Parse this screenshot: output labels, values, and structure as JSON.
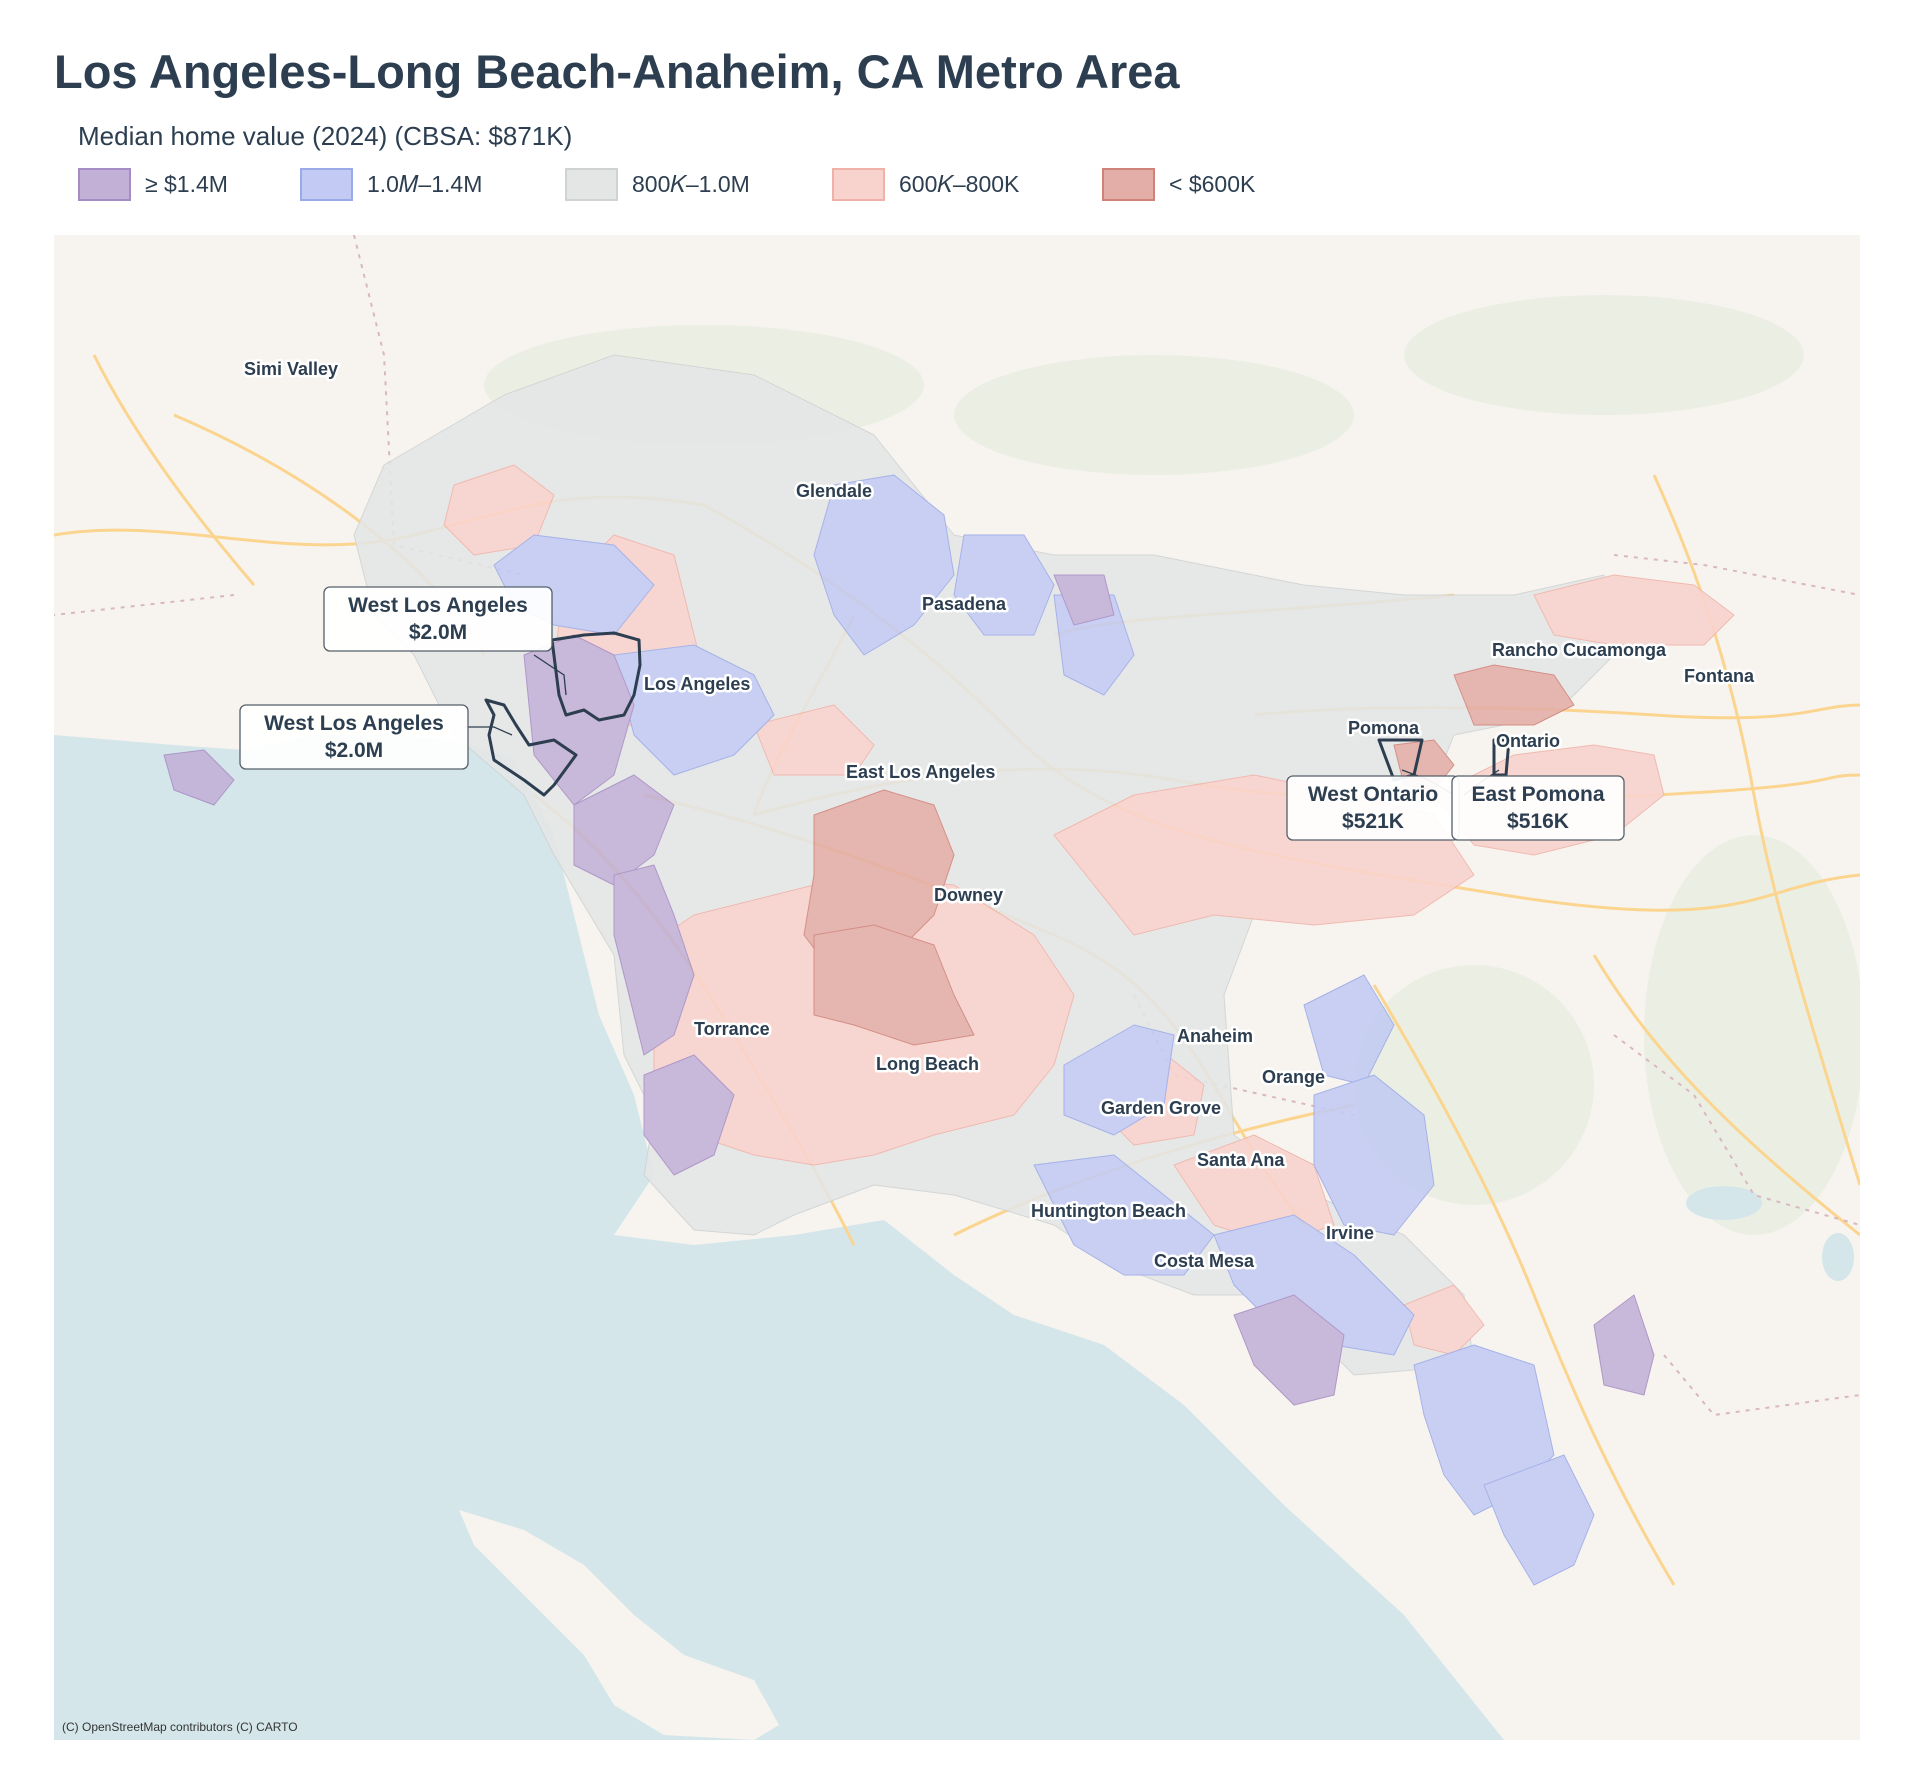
{
  "title": "Los Angeles-Long Beach-Anaheim, CA Metro Area",
  "subtitle": "Median home value (2024)  (CBSA: $871K)",
  "legend": [
    {
      "label": "≥ $1.4M",
      "fill": "#c2b0d6",
      "border": "#a68cc4"
    },
    {
      "label": "1.0𝑀–1.4M",
      "fill": "#c3cbf4",
      "border": "#9aaae8"
    },
    {
      "label": "800𝐾–1.0M",
      "fill": "#e4e6e6",
      "border": "#cfd3d3"
    },
    {
      "label": "600𝐾–800K",
      "fill": "#f8d3ce",
      "border": "#f0b2a8"
    },
    {
      "label": "< $600K",
      "fill": "#e3aea7",
      "border": "#cf8278"
    }
  ],
  "map": {
    "cities": [
      {
        "name": "Simi Valley"
      },
      {
        "name": "Glendale"
      },
      {
        "name": "Pasadena"
      },
      {
        "name": "Los Angeles"
      },
      {
        "name": "East Los Angeles"
      },
      {
        "name": "Downey"
      },
      {
        "name": "Torrance"
      },
      {
        "name": "Long Beach"
      },
      {
        "name": "Anaheim"
      },
      {
        "name": "Orange"
      },
      {
        "name": "Garden Grove"
      },
      {
        "name": "Santa Ana"
      },
      {
        "name": "Huntington Beach"
      },
      {
        "name": "Irvine"
      },
      {
        "name": "Costa Mesa"
      },
      {
        "name": "Rancho Cucamonga"
      },
      {
        "name": "Fontana"
      },
      {
        "name": "Pomona"
      },
      {
        "name": "Ontario"
      }
    ],
    "callouts": [
      {
        "name": "West Los Angeles",
        "value": "$2.0M"
      },
      {
        "name": "West Los Angeles",
        "value": "$2.0M"
      },
      {
        "name": "West Ontario",
        "value": "$521K"
      },
      {
        "name": "East Pomona",
        "value": "$516K"
      }
    ],
    "colors": {
      "water": "#d4e6ea",
      "land": "#f7f4ef",
      "highway": "#fbd58f",
      "outline": "#2c3e50"
    }
  },
  "attribution": "(C) OpenStreetMap contributors (C) CARTO"
}
